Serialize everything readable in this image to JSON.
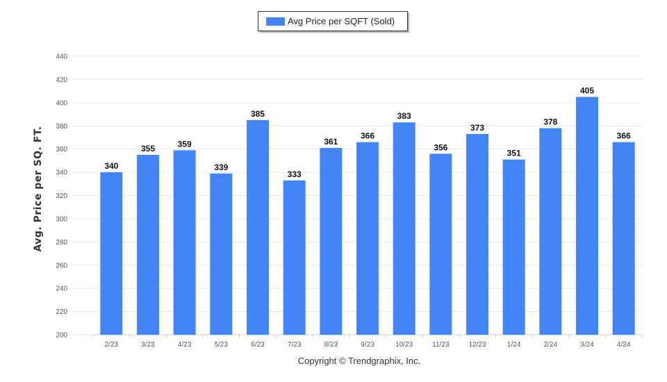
{
  "chart_data": {
    "type": "bar",
    "categories": [
      "2/23",
      "3/23",
      "4/23",
      "5/23",
      "6/23",
      "7/23",
      "8/23",
      "9/23",
      "10/23",
      "11/23",
      "12/23",
      "1/24",
      "2/24",
      "3/24",
      "4/24"
    ],
    "series": [
      {
        "name": "Avg Price per SQFT (Sold)",
        "values": [
          340,
          355,
          359,
          339,
          385,
          333,
          361,
          366,
          383,
          356,
          373,
          351,
          378,
          405,
          366
        ]
      }
    ],
    "ylabel": "Avg. Price per SQ. FT.",
    "xlabel": "",
    "ylim": [
      200,
      440
    ],
    "yticks": [
      200,
      220,
      240,
      260,
      280,
      300,
      320,
      340,
      360,
      380,
      400,
      420,
      440
    ],
    "grid": true,
    "legend_position": "top-center",
    "bar_color": "#4285F4",
    "data_labels": true
  },
  "footer": {
    "copyright": "Copyright © Trendgraphix, Inc."
  }
}
